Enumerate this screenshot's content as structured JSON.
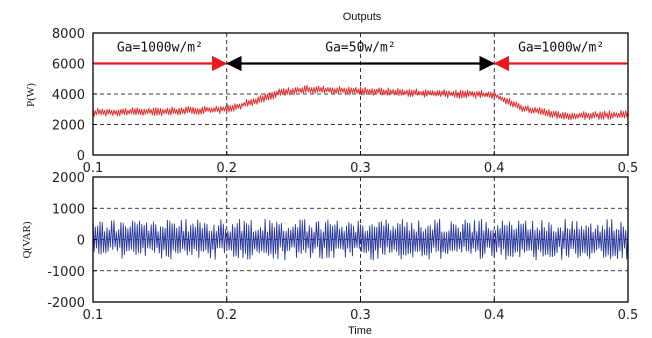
{
  "figure_title": "Outputs",
  "x_axis_label": "Time",
  "chart_data": [
    {
      "type": "line",
      "ylabel": "P(W)",
      "xlim": [
        0.1,
        0.5
      ],
      "ylim": [
        0,
        8000
      ],
      "grid": true,
      "x_ticks": [
        "0.1",
        "0.2",
        "0.3",
        "0.4",
        "0.5"
      ],
      "y_ticks": [
        "0",
        "2000",
        "4000",
        "6000",
        "8000"
      ],
      "series": [
        {
          "color": "#e0282a",
          "style": "oscillating",
          "x": [
            0.1,
            0.15,
            0.2,
            0.22,
            0.24,
            0.26,
            0.3,
            0.35,
            0.4,
            0.42,
            0.45,
            0.5
          ],
          "y": [
            2800,
            2850,
            3000,
            3500,
            4100,
            4300,
            4200,
            4050,
            3950,
            3100,
            2550,
            2650
          ],
          "ripple": 280
        }
      ],
      "annotations": [
        {
          "text": "Ga=1000w/m²",
          "arrow_from": 0.1,
          "arrow_to": 0.2,
          "value": 6000,
          "color": "#e8181c",
          "direction": "right"
        },
        {
          "text": "Ga=50w/m²",
          "arrow_from": 0.2,
          "arrow_to": 0.4,
          "value": 6000,
          "color": "#000000",
          "direction": "both"
        },
        {
          "text": "Ga=1000w/m²",
          "arrow_from": 0.4,
          "arrow_to": 0.5,
          "value": 6000,
          "color": "#e8181c",
          "direction": "left"
        }
      ]
    },
    {
      "type": "line",
      "ylabel": "Q(VAR)",
      "xlim": [
        0.1,
        0.5
      ],
      "ylim": [
        -2000,
        2000
      ],
      "grid": true,
      "x_ticks": [
        "0.1",
        "0.2",
        "0.3",
        "0.4",
        "0.5"
      ],
      "y_ticks": [
        "-2000",
        "-1000",
        "0",
        "1000",
        "2000"
      ],
      "series": [
        {
          "color": "#2b3a9c",
          "style": "oscillating",
          "x": [
            0.1,
            0.5
          ],
          "y": [
            0,
            0
          ],
          "ripple": 650
        }
      ]
    }
  ]
}
